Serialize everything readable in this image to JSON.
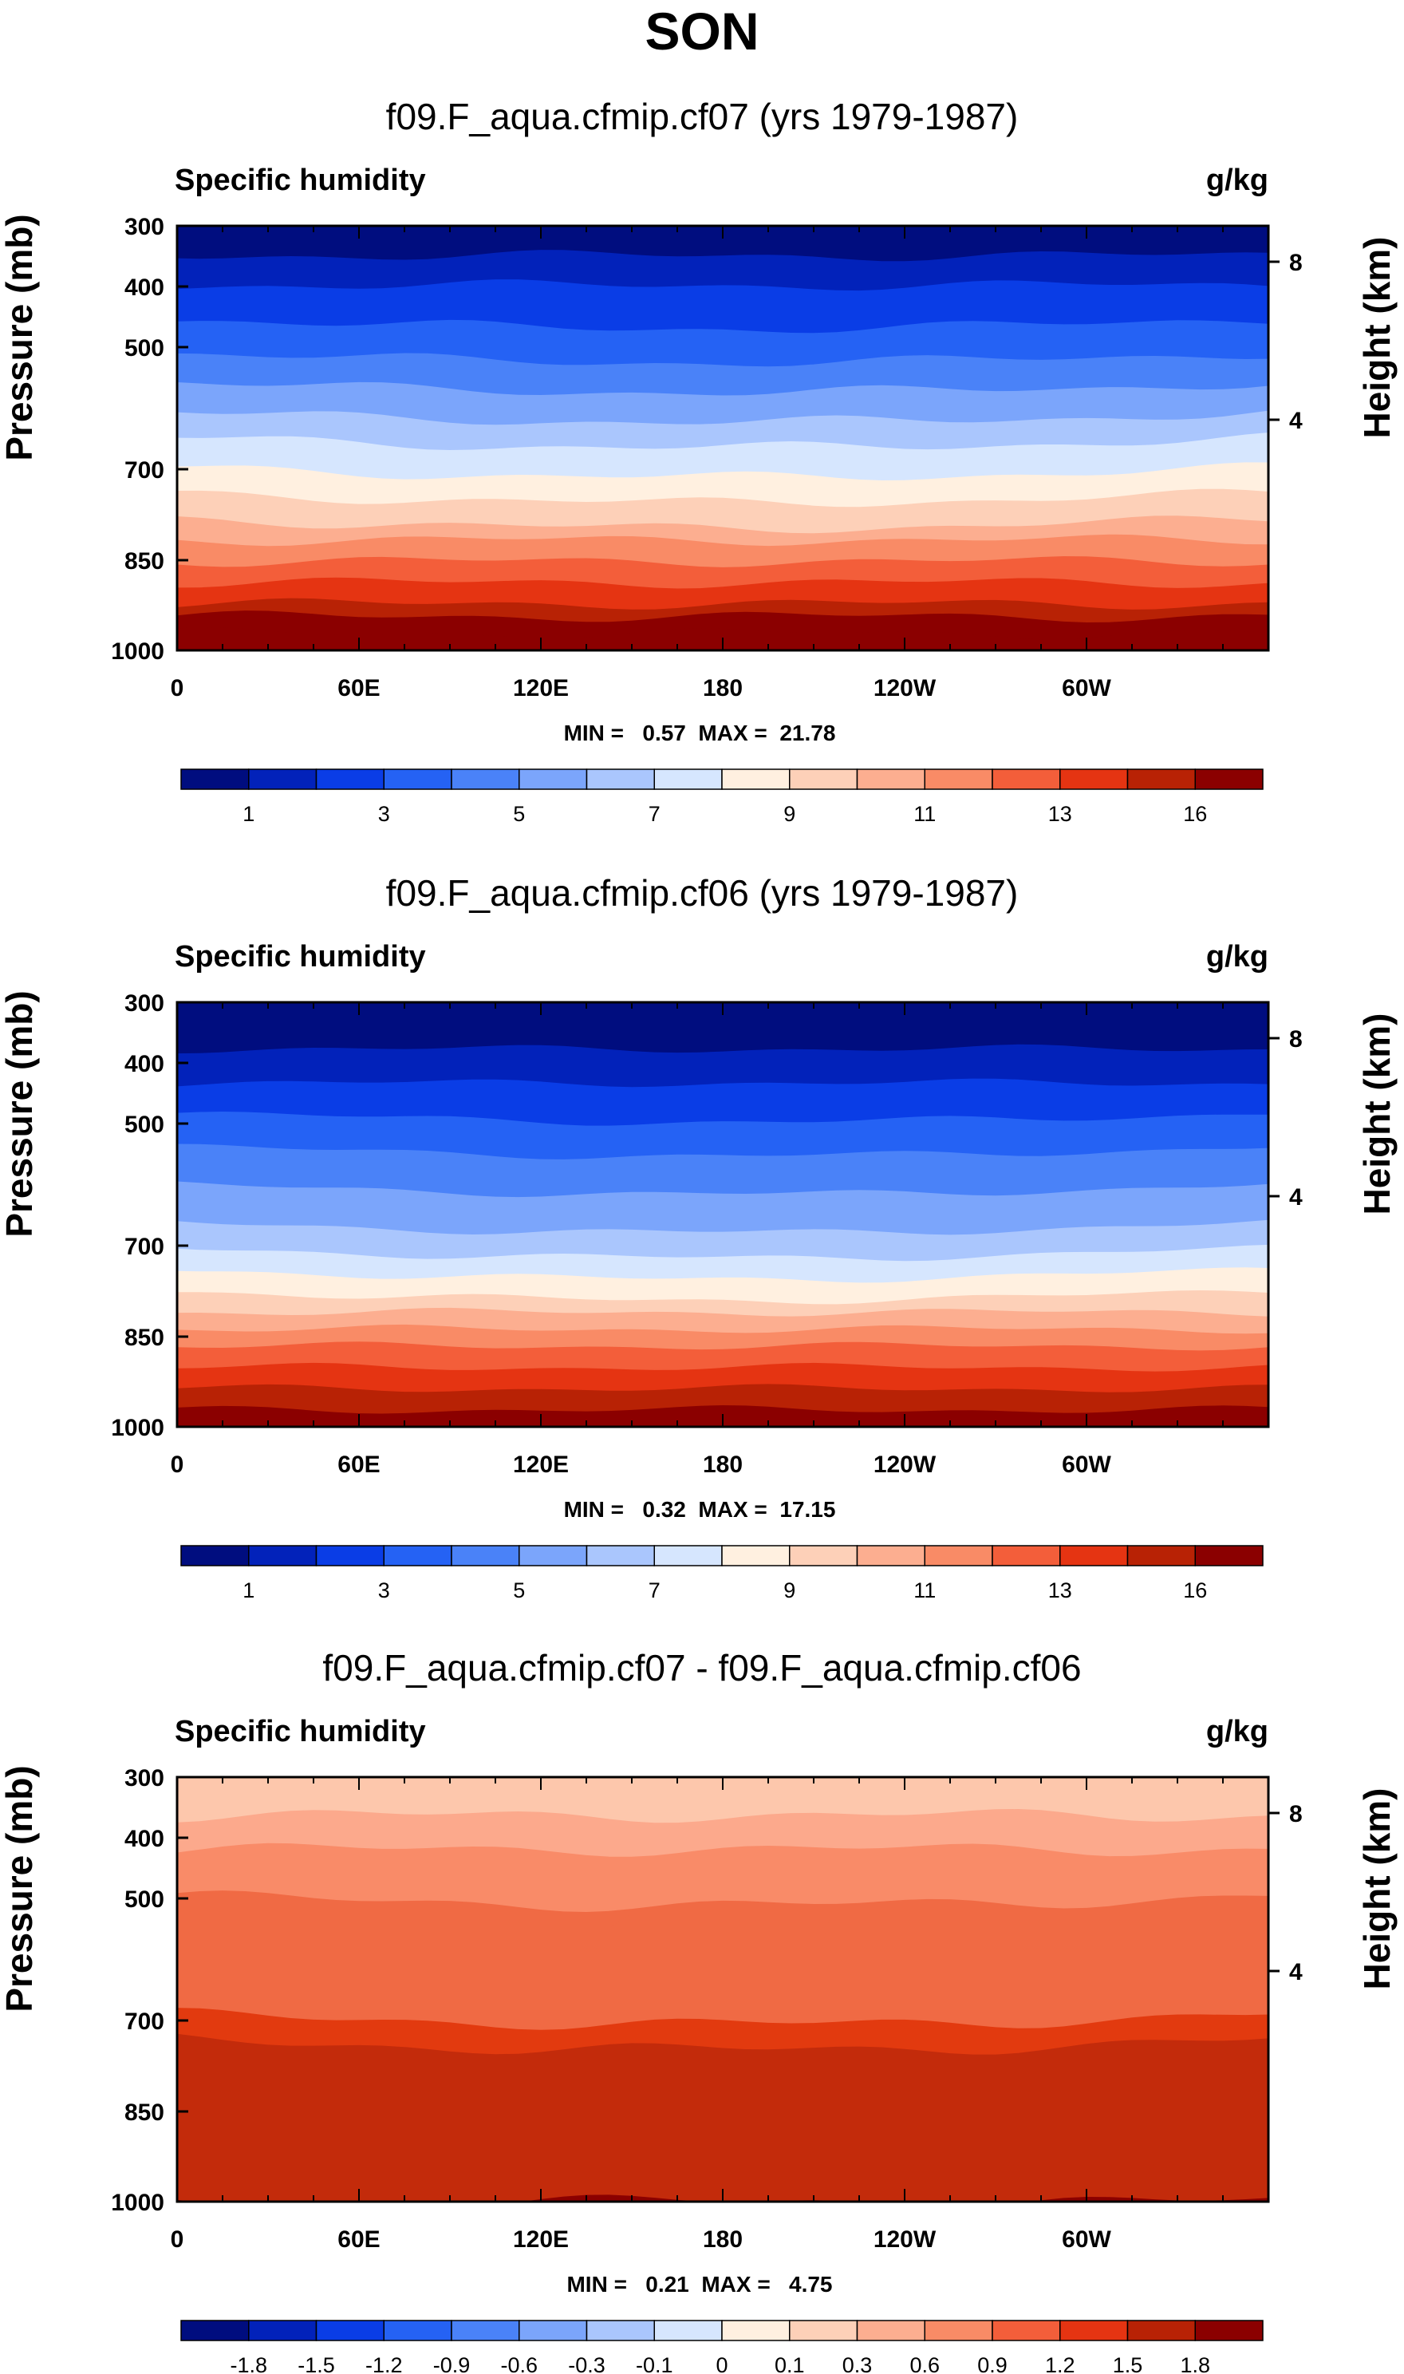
{
  "page": {
    "main_title": "SON"
  },
  "chart_data": [
    {
      "type": "heatmap",
      "title": "f09.F_aqua.cfmip.cf07 (yrs 1979-1987)",
      "left_label": "Specific humidity",
      "right_label": "g/kg",
      "ylabel": "Pressure (mb)",
      "ylabel_right": "Height (km)",
      "y_ticks": [
        "300",
        "400",
        "500",
        "700",
        "850",
        "1000"
      ],
      "y_ticks_right": [
        "8",
        "4"
      ],
      "x_ticks": [
        "0",
        "60E",
        "120E",
        "180",
        "120W",
        "60W"
      ],
      "min_max_text": "MIN =   0.57  MAX =  21.78",
      "min": 0.57,
      "max": 21.78,
      "colorbar_labels": [
        "1",
        "3",
        "5",
        "7",
        "9",
        "11",
        "13",
        "16"
      ],
      "band_fractions": [
        0.07,
        0.14,
        0.22,
        0.3,
        0.37,
        0.44,
        0.5,
        0.57,
        0.63,
        0.69,
        0.74,
        0.79,
        0.84,
        0.89,
        0.92,
        0.96
      ],
      "band_wave": 0.008
    },
    {
      "type": "heatmap",
      "title": "f09.F_aqua.cfmip.cf06 (yrs 1979-1987)",
      "left_label": "Specific humidity",
      "right_label": "g/kg",
      "ylabel": "Pressure (mb)",
      "ylabel_right": "Height (km)",
      "y_ticks": [
        "300",
        "400",
        "500",
        "700",
        "850",
        "1000"
      ],
      "y_ticks_right": [
        "8",
        "4"
      ],
      "x_ticks": [
        "0",
        "60E",
        "120E",
        "180",
        "120W",
        "60W"
      ],
      "min_max_text": "MIN =   0.32  MAX =  17.15",
      "min": 0.32,
      "max": 17.15,
      "colorbar_labels": [
        "1",
        "3",
        "5",
        "7",
        "9",
        "11",
        "13",
        "16"
      ],
      "band_fractions": [
        0.11,
        0.19,
        0.26,
        0.34,
        0.43,
        0.52,
        0.58,
        0.63,
        0.68,
        0.73,
        0.77,
        0.81,
        0.86,
        0.91,
        0.96,
        1.01
      ],
      "band_wave": 0.006
    },
    {
      "type": "heatmap",
      "title": "f09.F_aqua.cfmip.cf07 - f09.F_aqua.cfmip.cf06",
      "left_label": "Specific humidity",
      "right_label": "g/kg",
      "ylabel": "Pressure (mb)",
      "ylabel_right": "Height (km)",
      "y_ticks": [
        "300",
        "400",
        "500",
        "700",
        "850",
        "1000"
      ],
      "y_ticks_right": [
        "8",
        "4"
      ],
      "x_ticks": [
        "0",
        "60E",
        "120E",
        "180",
        "120W",
        "60W"
      ],
      "min_max_text": "MIN =   0.21  MAX =   4.75",
      "min": 0.21,
      "max": 4.75,
      "colorbar_labels": [
        "-1.8",
        "-1.5",
        "-1.2",
        "-0.9",
        "-0.6",
        "-0.3",
        "-0.1",
        "0",
        "0.1",
        "0.3",
        "0.6",
        "0.9",
        "1.2",
        "1.5",
        "1.8"
      ],
      "diff_bands": [
        {
          "color": "#fca98c",
          "frac": 0.09
        },
        {
          "color": "#f98b68",
          "frac": 0.17
        },
        {
          "color": "#f06a44",
          "frac": 0.28
        },
        {
          "color": "#e23a0f",
          "frac": 0.56
        },
        {
          "color": "#c32b0b",
          "frac": 0.62
        },
        {
          "color": "#8b0000",
          "frac": 1.0
        }
      ]
    }
  ],
  "colorbar_colors": [
    "#000d7f",
    "#0222ba",
    "#0a3de6",
    "#2562f4",
    "#4a82f8",
    "#7ba5fb",
    "#aac6fd",
    "#d6e6fe",
    "#fff0e0",
    "#fdd0b8",
    "#fcae90",
    "#f98b66",
    "#f35e3a",
    "#e53412",
    "#b82205",
    "#8b0000"
  ]
}
